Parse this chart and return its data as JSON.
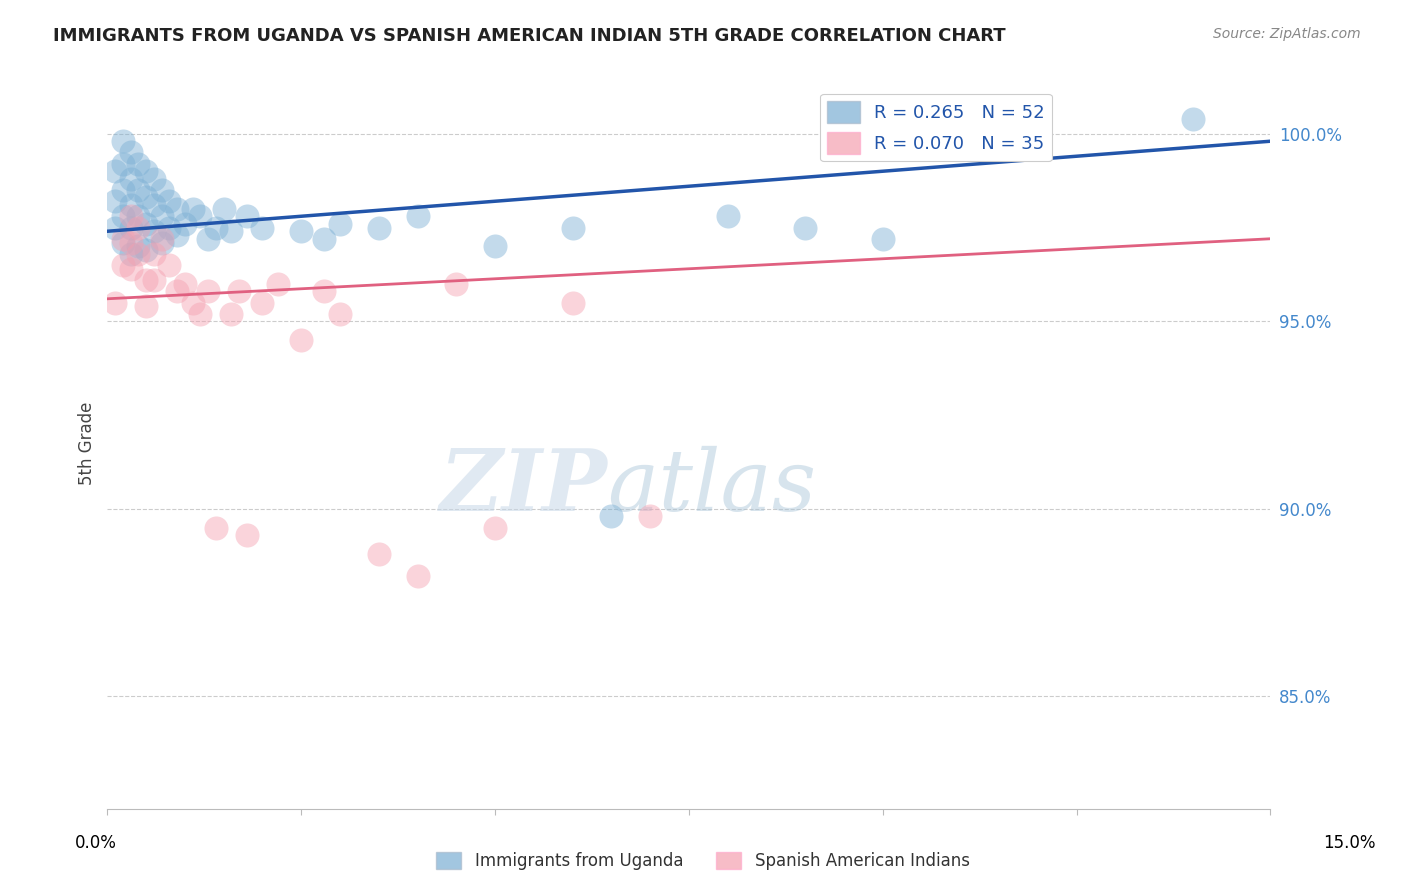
{
  "title": "IMMIGRANTS FROM UGANDA VS SPANISH AMERICAN INDIAN 5TH GRADE CORRELATION CHART",
  "source": "Source: ZipAtlas.com",
  "ylabel": "5th Grade",
  "ytick_labels": [
    "85.0%",
    "90.0%",
    "95.0%",
    "100.0%"
  ],
  "ytick_values": [
    0.85,
    0.9,
    0.95,
    1.0
  ],
  "xmin": 0.0,
  "xmax": 0.15,
  "ymin": 0.82,
  "ymax": 1.015,
  "legend_entry1": "R = 0.265   N = 52",
  "legend_entry2": "R = 0.070   N = 35",
  "legend_label1": "Immigrants from Uganda",
  "legend_label2": "Spanish American Indians",
  "blue_color": "#7BAFD4",
  "pink_color": "#F4A0B0",
  "blue_line_color": "#2255AA",
  "pink_line_color": "#E06080",
  "blue_x": [
    0.001,
    0.001,
    0.001,
    0.002,
    0.002,
    0.002,
    0.002,
    0.002,
    0.003,
    0.003,
    0.003,
    0.003,
    0.003,
    0.004,
    0.004,
    0.004,
    0.004,
    0.005,
    0.005,
    0.005,
    0.005,
    0.006,
    0.006,
    0.006,
    0.007,
    0.007,
    0.007,
    0.008,
    0.008,
    0.009,
    0.009,
    0.01,
    0.011,
    0.012,
    0.013,
    0.014,
    0.015,
    0.016,
    0.018,
    0.02,
    0.025,
    0.028,
    0.03,
    0.035,
    0.04,
    0.05,
    0.06,
    0.065,
    0.08,
    0.09,
    0.1,
    0.14
  ],
  "blue_y": [
    0.99,
    0.982,
    0.975,
    0.998,
    0.992,
    0.985,
    0.978,
    0.971,
    0.995,
    0.988,
    0.981,
    0.975,
    0.968,
    0.992,
    0.985,
    0.978,
    0.97,
    0.99,
    0.983,
    0.976,
    0.969,
    0.988,
    0.981,
    0.974,
    0.985,
    0.978,
    0.971,
    0.982,
    0.975,
    0.98,
    0.973,
    0.976,
    0.98,
    0.978,
    0.972,
    0.975,
    0.98,
    0.974,
    0.978,
    0.975,
    0.974,
    0.972,
    0.976,
    0.975,
    0.978,
    0.97,
    0.975,
    0.898,
    0.978,
    0.975,
    0.972,
    1.004
  ],
  "pink_x": [
    0.001,
    0.002,
    0.002,
    0.003,
    0.003,
    0.003,
    0.004,
    0.004,
    0.005,
    0.005,
    0.006,
    0.006,
    0.007,
    0.008,
    0.009,
    0.01,
    0.011,
    0.012,
    0.013,
    0.014,
    0.016,
    0.017,
    0.018,
    0.02,
    0.022,
    0.025,
    0.028,
    0.03,
    0.035,
    0.04,
    0.045,
    0.05,
    0.06,
    0.07,
    0.1
  ],
  "pink_y": [
    0.955,
    0.972,
    0.965,
    0.978,
    0.971,
    0.964,
    0.975,
    0.968,
    0.961,
    0.954,
    0.968,
    0.961,
    0.972,
    0.965,
    0.958,
    0.96,
    0.955,
    0.952,
    0.958,
    0.895,
    0.952,
    0.958,
    0.893,
    0.955,
    0.96,
    0.945,
    0.958,
    0.952,
    0.888,
    0.882,
    0.96,
    0.895,
    0.955,
    0.898,
    1.004
  ],
  "blue_trend_x": [
    0.0,
    0.15
  ],
  "blue_trend_y": [
    0.974,
    0.998
  ],
  "pink_trend_x": [
    0.0,
    0.15
  ],
  "pink_trend_y": [
    0.956,
    0.972
  ],
  "watermark_zip": "ZIP",
  "watermark_atlas": "atlas",
  "grid_color": "#CCCCCC",
  "background_color": "#FFFFFF",
  "title_color": "#222222",
  "source_color": "#888888",
  "ylabel_color": "#444444",
  "legend_text_color": "#2255AA",
  "right_tick_color": "#4488CC"
}
